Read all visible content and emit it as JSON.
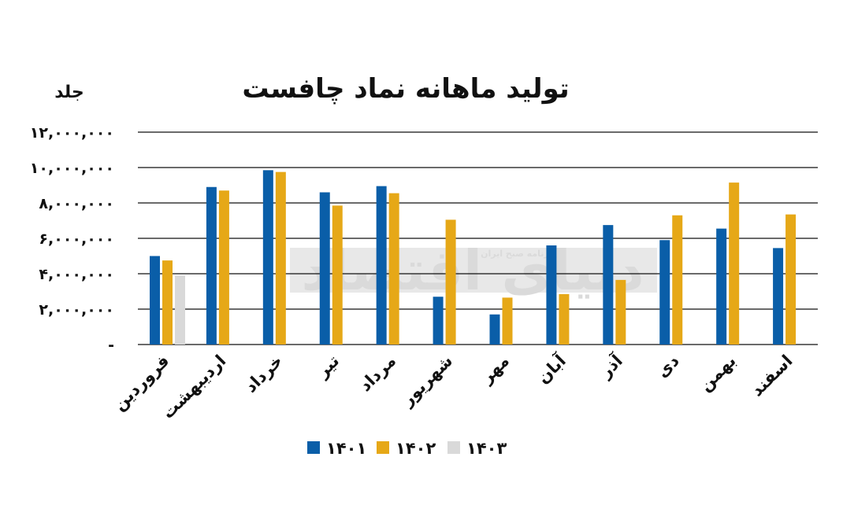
{
  "chart_data": {
    "type": "bar",
    "title": "تولید ماهانه نماد چافست",
    "ylabel": "جلد",
    "xlabel": "",
    "ylim": [
      0,
      12000000
    ],
    "yticks": [
      "-",
      "۲,۰۰۰,۰۰۰",
      "۴,۰۰۰,۰۰۰",
      "۶,۰۰۰,۰۰۰",
      "۸,۰۰۰,۰۰۰",
      "۱۰,۰۰۰,۰۰۰",
      "۱۲,۰۰۰,۰۰۰"
    ],
    "categories": [
      "فروردین",
      "اردیبهشت",
      "خرداد",
      "تیر",
      "مرداد",
      "شهریور",
      "مهر",
      "آبان",
      "آذر",
      "دی",
      "بهمن",
      "اسفند"
    ],
    "series": [
      {
        "name": "۱۴۰۱",
        "color": "#0a5ea8",
        "values": [
          5000000,
          8900000,
          9850000,
          8600000,
          8950000,
          2700000,
          1700000,
          5600000,
          6750000,
          5900000,
          6550000,
          5450000
        ]
      },
      {
        "name": "۱۴۰۲",
        "color": "#e6a817",
        "values": [
          4750000,
          8700000,
          9750000,
          7850000,
          8550000,
          7050000,
          2650000,
          2850000,
          3650000,
          7300000,
          9150000,
          7350000
        ]
      },
      {
        "name": "۱۴۰۳",
        "color": "#d9d9d9",
        "values": [
          3900000,
          null,
          null,
          null,
          null,
          null,
          null,
          null,
          null,
          null,
          null,
          null
        ]
      }
    ],
    "grid": true,
    "legend_position": "bottom"
  },
  "watermark": {
    "text": "دنیای اقتصاد",
    "subtext": "روزنامه صبح ایران"
  }
}
